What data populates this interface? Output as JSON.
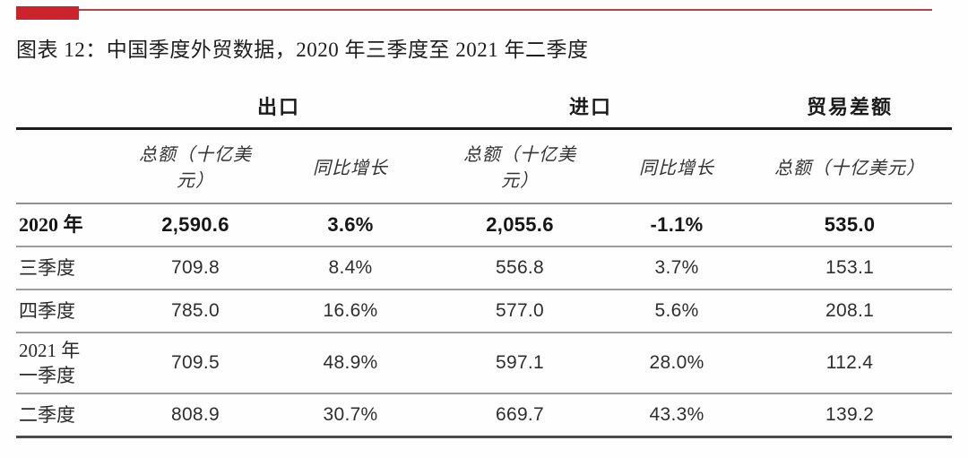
{
  "accent_color": "#cb242c",
  "figure_title": "图表 12：中国季度外贸数据，2020 年三季度至 2021 年二季度",
  "table": {
    "group_headers": [
      "出口",
      "进口",
      "贸易差额"
    ],
    "sub_headers": [
      "总额（十亿美\n元）",
      "同比增长",
      "总额（十亿美\n元）",
      "同比增长",
      "总额（十亿美元）"
    ],
    "rows": [
      {
        "label": "2020 年",
        "emphasis": true,
        "values": [
          "2,590.6",
          "3.6%",
          "2,055.6",
          "-1.1%",
          "535.0"
        ]
      },
      {
        "label": "三季度",
        "emphasis": false,
        "values": [
          "709.8",
          "8.4%",
          "556.8",
          "3.7%",
          "153.1"
        ]
      },
      {
        "label": "四季度",
        "emphasis": false,
        "values": [
          "785.0",
          "16.6%",
          "577.0",
          "5.6%",
          "208.1"
        ]
      },
      {
        "label": "2021 年\n一季度",
        "emphasis": false,
        "values": [
          "709.5",
          "48.9%",
          "597.1",
          "28.0%",
          "112.4"
        ]
      },
      {
        "label": "二季度",
        "emphasis": false,
        "values": [
          "808.9",
          "30.7%",
          "669.7",
          "43.3%",
          "139.2"
        ]
      }
    ]
  },
  "chart_data": {
    "type": "table",
    "title": "图表 12：中国季度外贸数据，2020 年三季度至 2021 年二季度",
    "column_groups": [
      "出口",
      "进口",
      "贸易差额"
    ],
    "columns": [
      "",
      "出口 总额（十亿美元）",
      "出口 同比增长",
      "进口 总额（十亿美元）",
      "进口 同比增长",
      "贸易差额 总额（十亿美元）"
    ],
    "rows": [
      {
        "period": "2020 年",
        "export_total": 2590.6,
        "export_yoy_pct": 3.6,
        "import_total": 2055.6,
        "import_yoy_pct": -1.1,
        "trade_balance": 535.0
      },
      {
        "period": "三季度",
        "export_total": 709.8,
        "export_yoy_pct": 8.4,
        "import_total": 556.8,
        "import_yoy_pct": 3.7,
        "trade_balance": 153.1
      },
      {
        "period": "四季度",
        "export_total": 785.0,
        "export_yoy_pct": 16.6,
        "import_total": 577.0,
        "import_yoy_pct": 5.6,
        "trade_balance": 208.1
      },
      {
        "period": "2021 年 一季度",
        "export_total": 709.5,
        "export_yoy_pct": 48.9,
        "import_total": 597.1,
        "import_yoy_pct": 28.0,
        "trade_balance": 112.4
      },
      {
        "period": "二季度",
        "export_total": 808.9,
        "export_yoy_pct": 30.7,
        "import_total": 669.7,
        "import_yoy_pct": 43.3,
        "trade_balance": 139.2
      }
    ]
  }
}
